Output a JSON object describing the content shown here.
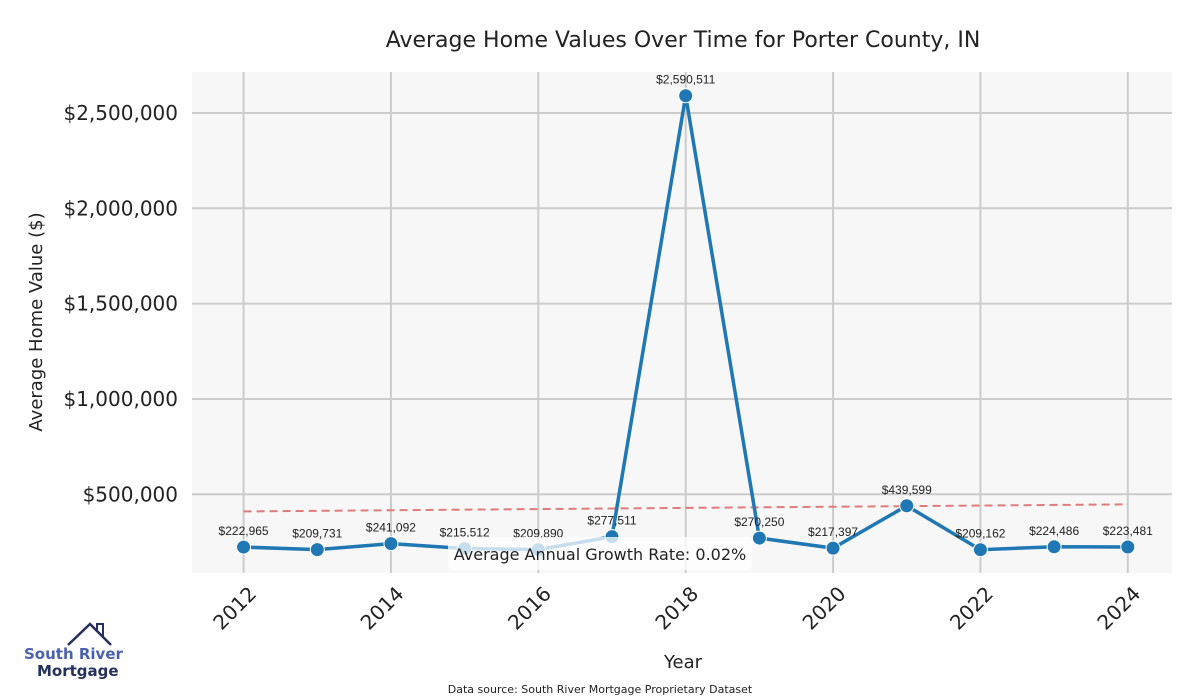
{
  "chart_data": {
    "type": "line",
    "title": "Average Home Values Over Time for Porter County, IN",
    "xlabel": "Year",
    "ylabel": "Average Home Value ($)",
    "x": [
      2012,
      2013,
      2014,
      2015,
      2016,
      2017,
      2018,
      2019,
      2020,
      2021,
      2022,
      2023,
      2024
    ],
    "values": [
      222965,
      209731,
      241092,
      215512,
      209890,
      277511,
      2590511,
      270250,
      217397,
      439599,
      209162,
      224486,
      223481
    ],
    "data_labels": [
      "$222,965",
      "$209,731",
      "$241,092",
      "$215,512",
      "$209,890",
      "$277,511",
      "$2,590,511",
      "$270,250",
      "$217,397",
      "$439,599",
      "$209,162",
      "$224,486",
      "$223,481"
    ],
    "xticks": [
      "2012",
      "2014",
      "2016",
      "2018",
      "2020",
      "2022",
      "2024"
    ],
    "xtick_values": [
      2012,
      2014,
      2016,
      2018,
      2020,
      2022,
      2024
    ],
    "yticks": [
      "$500,000",
      "$1,000,000",
      "$1,500,000",
      "$2,000,000",
      "$2,500,000"
    ],
    "ytick_values": [
      500000,
      1000000,
      1500000,
      2000000,
      2500000
    ],
    "xlim": [
      2011.3,
      2024.6
    ],
    "ylim": [
      87000,
      2715000
    ],
    "trend": {
      "x": [
        2012,
        2024
      ],
      "y": [
        410000,
        447000
      ],
      "color": "#e07b7b"
    },
    "annotation": "Average Annual Growth Rate: 0.02%",
    "line_color": "#1f77b4",
    "grid": true
  },
  "source": "Data source: South River Mortgage Proprietary Dataset",
  "logo": {
    "line1": "South River",
    "line2": "Mortgage"
  }
}
